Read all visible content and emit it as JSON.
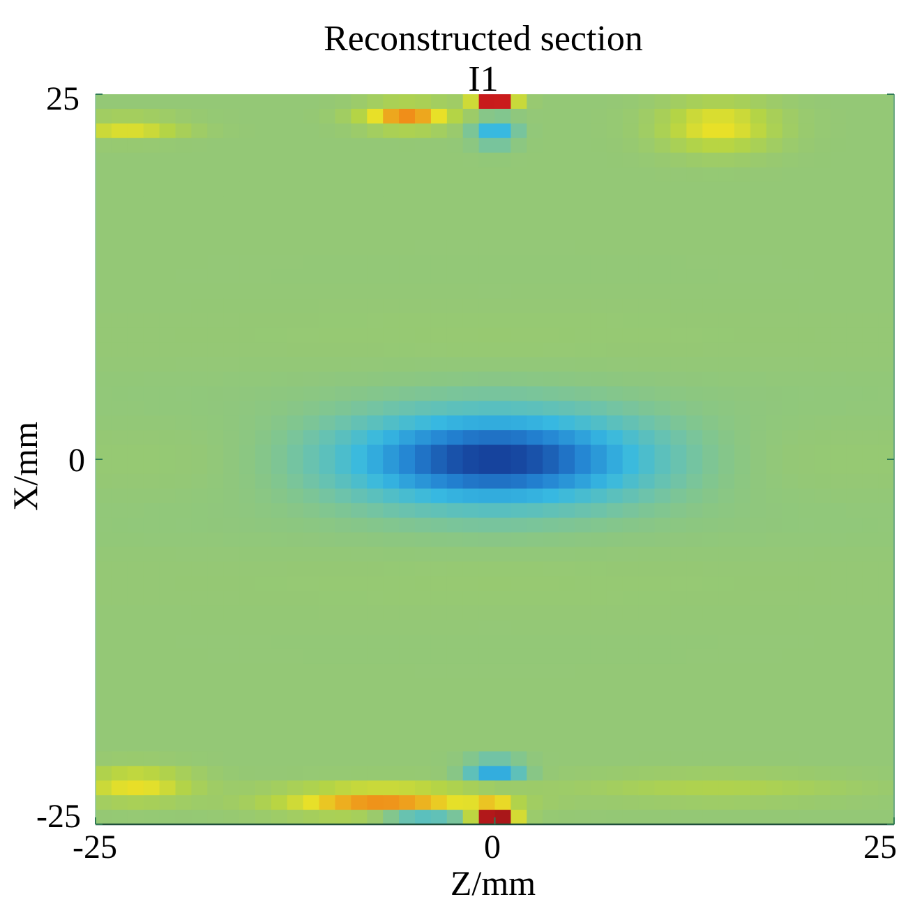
{
  "chart_data": {
    "type": "heatmap",
    "title": "Reconstructed section",
    "subtitle": "I1",
    "xlabel": "Z/mm",
    "ylabel": "X/mm",
    "xlim": [
      -25,
      25
    ],
    "ylim": [
      -25,
      25
    ],
    "xticks": [
      "-25",
      "0",
      "25"
    ],
    "yticks": [
      "25",
      "0",
      "-25"
    ],
    "colormap": "parula-jet",
    "grid": false,
    "features": [
      {
        "name": "central-low-void",
        "z": 0,
        "x": 0,
        "sigma_z": 6.5,
        "sigma_x": 2.0,
        "value": -1.0
      },
      {
        "name": "top-edge-high",
        "z": 0,
        "x": 24.5,
        "sigma_z": 0.9,
        "sigma_x": 0.6,
        "value": 1.0
      },
      {
        "name": "bottom-edge-high",
        "z": 0,
        "x": -24.5,
        "sigma_z": 0.9,
        "sigma_x": 0.6,
        "value": 1.0
      },
      {
        "name": "top-left-orange",
        "z": -5.5,
        "x": 23.5,
        "sigma_z": 2.0,
        "sigma_x": 0.6,
        "value": 0.55
      },
      {
        "name": "top-right-yellow",
        "z": 14,
        "x": 22.8,
        "sigma_z": 2.5,
        "sigma_x": 1.2,
        "value": 0.35
      },
      {
        "name": "top-far-left-yellow",
        "z": -23,
        "x": 22.7,
        "sigma_z": 2.5,
        "sigma_x": 0.5,
        "value": 0.32
      },
      {
        "name": "bottom-orange-band",
        "z": -7,
        "x": -23.4,
        "sigma_z": 4.5,
        "sigma_x": 0.7,
        "value": 0.55
      },
      {
        "name": "bottom-left-yellow",
        "z": -22.5,
        "x": -22.3,
        "sigma_z": 2.5,
        "sigma_x": 0.8,
        "value": 0.35
      },
      {
        "name": "bottom-right-yellow",
        "z": 14,
        "x": -22.5,
        "sigma_z": 6.0,
        "sigma_x": 0.7,
        "value": 0.15
      },
      {
        "name": "top-below-edge-blue",
        "z": 0,
        "x": 22.8,
        "sigma_z": 0.9,
        "sigma_x": 0.8,
        "value": -0.5
      },
      {
        "name": "bottom-above-edge-blue",
        "z": 0,
        "x": -21.3,
        "sigma_z": 1.2,
        "sigma_x": 0.5,
        "value": -0.55
      },
      {
        "name": "bottom-left-blue",
        "z": -4.5,
        "x": -24.8,
        "sigma_z": 2.0,
        "sigma_x": 0.5,
        "value": -0.45
      }
    ]
  }
}
